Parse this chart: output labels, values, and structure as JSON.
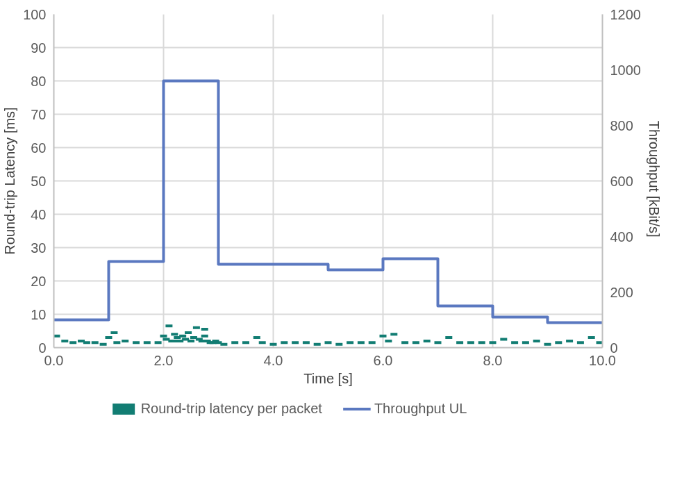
{
  "chart_data": {
    "type": "scatter",
    "xlabel": "Time [s]",
    "ylabel": "Round-trip Latency [ms]",
    "y2label": "Throughput  [kBit/s]",
    "xlim": [
      0,
      10
    ],
    "xticks": [
      {
        "value": 0,
        "label": "0.0"
      },
      {
        "value": 2,
        "label": "2.0"
      },
      {
        "value": 4,
        "label": "4.0"
      },
      {
        "value": 6,
        "label": "6.0"
      },
      {
        "value": 8,
        "label": "8.0"
      },
      {
        "value": 10,
        "label": "10.0"
      }
    ],
    "ylim": [
      0,
      100
    ],
    "yticks": [
      0,
      10,
      20,
      30,
      40,
      50,
      60,
      70,
      80,
      90,
      100
    ],
    "y2lim": [
      0,
      1200
    ],
    "y2ticks": [
      0,
      200,
      400,
      600,
      800,
      1000,
      1200
    ],
    "grid": true,
    "legend": "bottom",
    "series": [
      {
        "name": "Round-trip latency per packet",
        "color": "#127d73",
        "x": [
          0.05,
          0.2,
          0.35,
          0.5,
          0.6,
          0.75,
          0.9,
          1.0,
          1.1,
          1.15,
          1.3,
          1.5,
          1.7,
          1.9,
          2.0,
          2.05,
          2.1,
          2.15,
          2.2,
          2.2,
          2.25,
          2.3,
          2.35,
          2.4,
          2.45,
          2.5,
          2.55,
          2.6,
          2.65,
          2.7,
          2.75,
          2.75,
          2.8,
          2.85,
          2.9,
          2.95,
          3.0,
          3.1,
          3.3,
          3.5,
          3.7,
          3.8,
          4.0,
          4.2,
          4.4,
          4.6,
          4.8,
          5.0,
          5.2,
          5.4,
          5.6,
          5.8,
          6.0,
          6.1,
          6.2,
          6.4,
          6.6,
          6.8,
          7.0,
          7.2,
          7.4,
          7.6,
          7.8,
          8.0,
          8.2,
          8.4,
          8.6,
          8.8,
          9.0,
          9.2,
          9.4,
          9.6,
          9.8,
          9.95
        ],
        "values": [
          3.5,
          2,
          1.5,
          2,
          1.5,
          1.5,
          1,
          3,
          4.5,
          1.5,
          2,
          1.5,
          1.5,
          1.5,
          3.5,
          2.5,
          6.5,
          2,
          4,
          2,
          3,
          2,
          3.5,
          2.5,
          4.5,
          2,
          3,
          6,
          2.5,
          2,
          5.5,
          3.5,
          2,
          1.5,
          1.5,
          2,
          1.5,
          1,
          1.5,
          1.5,
          3,
          1.5,
          1,
          1.5,
          1.5,
          1.5,
          1,
          1.5,
          1,
          1.5,
          1.5,
          1.5,
          3.5,
          2,
          4,
          1.5,
          1.5,
          2,
          1.5,
          3,
          1.5,
          1.5,
          1.5,
          1.5,
          2.5,
          1.5,
          1.5,
          2,
          1,
          1.5,
          2,
          1.5,
          3,
          1.5
        ]
      },
      {
        "name": "Throughput UL",
        "type": "step",
        "axis": "y2",
        "color": "#5a78c0",
        "x": [
          0,
          1,
          2,
          3,
          4,
          5,
          6,
          7,
          8,
          9,
          10
        ],
        "values": [
          100,
          310,
          960,
          300,
          300,
          280,
          320,
          150,
          110,
          90,
          90
        ]
      }
    ]
  }
}
